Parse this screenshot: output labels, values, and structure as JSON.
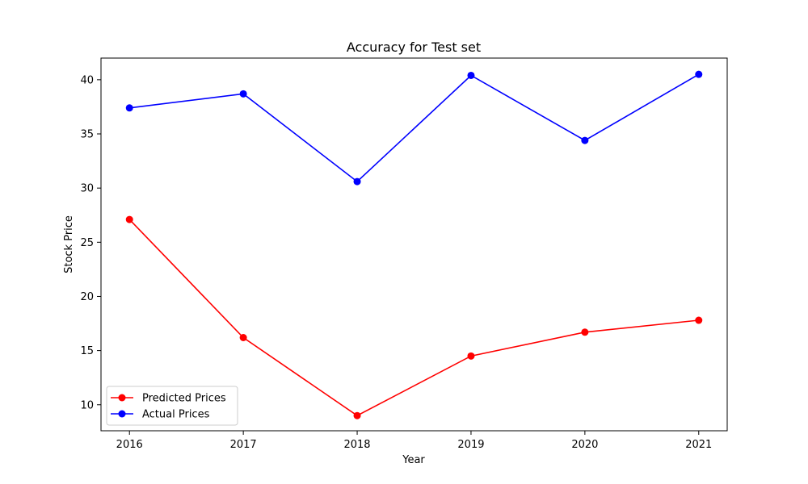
{
  "chart_data": {
    "type": "line",
    "title": "Accuracy for Test set",
    "xlabel": "Year",
    "ylabel": "Stock Price",
    "x": [
      2016,
      2017,
      2018,
      2019,
      2020,
      2021
    ],
    "x_tick_labels": [
      "2016",
      "2017",
      "2018",
      "2019",
      "2020",
      "2021"
    ],
    "xlim": [
      2015.75,
      2021.25
    ],
    "ylim": [
      7.6,
      42.0
    ],
    "y_ticks": [
      10,
      15,
      20,
      25,
      30,
      35,
      40
    ],
    "y_tick_labels": [
      "10",
      "15",
      "20",
      "25",
      "30",
      "35",
      "40"
    ],
    "grid": false,
    "legend_position": "lower-left",
    "series": [
      {
        "name": "Predicted Prices",
        "color": "#ff0000",
        "marker": "circle",
        "values": [
          27.1,
          16.2,
          9.0,
          14.5,
          16.7,
          17.8
        ]
      },
      {
        "name": "Actual Prices",
        "color": "#0000ff",
        "marker": "circle",
        "values": [
          37.4,
          38.7,
          30.6,
          40.4,
          34.4,
          40.5
        ]
      }
    ]
  }
}
